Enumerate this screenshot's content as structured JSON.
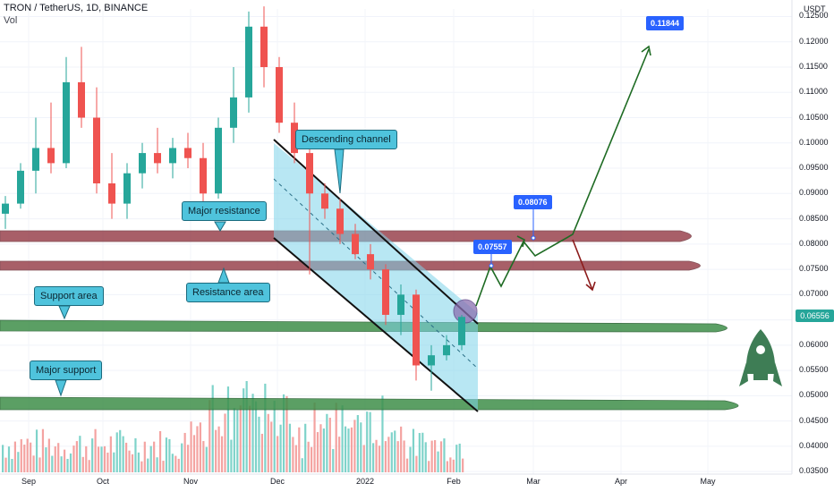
{
  "header": {
    "symbol_line": "TRON / TetherUS, 1D, BINANCE",
    "volume_label": "Vol",
    "unit": "USDT"
  },
  "colors": {
    "up": "#26a69a",
    "down": "#ef5350",
    "resistance_band": "#8b2a36",
    "support_band": "#3f8f4a",
    "channel_fill": "#7dd3ea",
    "annotation_bg": "#4fc3dc",
    "target_bg": "#2962ff",
    "arrow_up": "#1e6b23",
    "arrow_down": "#8b1a1a"
  },
  "annotations": {
    "descending_channel": "Descending channel",
    "major_resistance": "Major resistance",
    "resistance_area": "Resistance area",
    "support_area": "Support area",
    "major_support": "Major support"
  },
  "targets": {
    "t1": "0.07557",
    "t2": "0.08076",
    "t3": "0.11844"
  },
  "current_price": "0.06556",
  "chart_data": {
    "type": "candlestick",
    "title": "TRON / TetherUS, 1D, BINANCE",
    "ylabel": "USDT",
    "ylim": [
      0.0345,
      0.1265
    ],
    "y_ticks": [
      "0.12500",
      "0.12000",
      "0.11500",
      "0.11000",
      "0.10500",
      "0.10000",
      "0.09500",
      "0.09000",
      "0.08500",
      "0.08000",
      "0.07500",
      "0.07000",
      "0.06500",
      "0.06000",
      "0.05500",
      "0.05000",
      "0.04500",
      "0.04000",
      "0.03500"
    ],
    "x_ticks": [
      "Sep",
      "Oct",
      "Nov",
      "Dec",
      "2022",
      "Feb",
      "Mar",
      "Apr",
      "May"
    ],
    "candles_sampled": [
      {
        "date": "Sep",
        "open": 0.086,
        "high": 0.0895,
        "low": 0.083,
        "close": 0.088
      },
      {
        "date": "Sep",
        "open": 0.088,
        "high": 0.096,
        "low": 0.087,
        "close": 0.0945
      },
      {
        "date": "Sep",
        "open": 0.0945,
        "high": 0.105,
        "low": 0.09,
        "close": 0.099
      },
      {
        "date": "Sep",
        "open": 0.099,
        "high": 0.108,
        "low": 0.094,
        "close": 0.096
      },
      {
        "date": "Sep",
        "open": 0.096,
        "high": 0.117,
        "low": 0.095,
        "close": 0.112
      },
      {
        "date": "Sep",
        "open": 0.112,
        "high": 0.119,
        "low": 0.103,
        "close": 0.105
      },
      {
        "date": "Sep",
        "open": 0.105,
        "high": 0.111,
        "low": 0.09,
        "close": 0.092
      },
      {
        "date": "Sep",
        "open": 0.092,
        "high": 0.098,
        "low": 0.085,
        "close": 0.088
      },
      {
        "date": "Oct",
        "open": 0.088,
        "high": 0.096,
        "low": 0.085,
        "close": 0.094
      },
      {
        "date": "Oct",
        "open": 0.094,
        "high": 0.1,
        "low": 0.091,
        "close": 0.098
      },
      {
        "date": "Oct",
        "open": 0.098,
        "high": 0.103,
        "low": 0.094,
        "close": 0.096
      },
      {
        "date": "Oct",
        "open": 0.096,
        "high": 0.101,
        "low": 0.093,
        "close": 0.099
      },
      {
        "date": "Oct",
        "open": 0.099,
        "high": 0.102,
        "low": 0.095,
        "close": 0.097
      },
      {
        "date": "Oct",
        "open": 0.097,
        "high": 0.1,
        "low": 0.088,
        "close": 0.09
      },
      {
        "date": "Nov",
        "open": 0.09,
        "high": 0.105,
        "low": 0.089,
        "close": 0.103
      },
      {
        "date": "Nov",
        "open": 0.103,
        "high": 0.115,
        "low": 0.1,
        "close": 0.109
      },
      {
        "date": "Nov",
        "open": 0.109,
        "high": 0.126,
        "low": 0.106,
        "close": 0.123
      },
      {
        "date": "Nov",
        "open": 0.123,
        "high": 0.127,
        "low": 0.111,
        "close": 0.115
      },
      {
        "date": "Nov",
        "open": 0.115,
        "high": 0.117,
        "low": 0.102,
        "close": 0.104
      },
      {
        "date": "Nov",
        "open": 0.104,
        "high": 0.108,
        "low": 0.096,
        "close": 0.098
      },
      {
        "date": "Dec",
        "open": 0.098,
        "high": 0.1,
        "low": 0.074,
        "close": 0.09
      },
      {
        "date": "Dec",
        "open": 0.09,
        "high": 0.092,
        "low": 0.085,
        "close": 0.087
      },
      {
        "date": "Dec",
        "open": 0.087,
        "high": 0.089,
        "low": 0.08,
        "close": 0.082
      },
      {
        "date": "Dec",
        "open": 0.082,
        "high": 0.084,
        "low": 0.077,
        "close": 0.078
      },
      {
        "date": "Dec",
        "open": 0.078,
        "high": 0.08,
        "low": 0.073,
        "close": 0.075
      },
      {
        "date": "2022",
        "open": 0.075,
        "high": 0.076,
        "low": 0.064,
        "close": 0.066
      },
      {
        "date": "2022",
        "open": 0.066,
        "high": 0.072,
        "low": 0.062,
        "close": 0.07
      },
      {
        "date": "2022",
        "open": 0.07,
        "high": 0.071,
        "low": 0.053,
        "close": 0.056
      },
      {
        "date": "2022",
        "open": 0.056,
        "high": 0.06,
        "low": 0.051,
        "close": 0.058
      },
      {
        "date": "Feb",
        "open": 0.058,
        "high": 0.062,
        "low": 0.057,
        "close": 0.06
      },
      {
        "date": "Feb",
        "open": 0.06,
        "high": 0.066,
        "low": 0.059,
        "close": 0.0656
      }
    ]
  }
}
